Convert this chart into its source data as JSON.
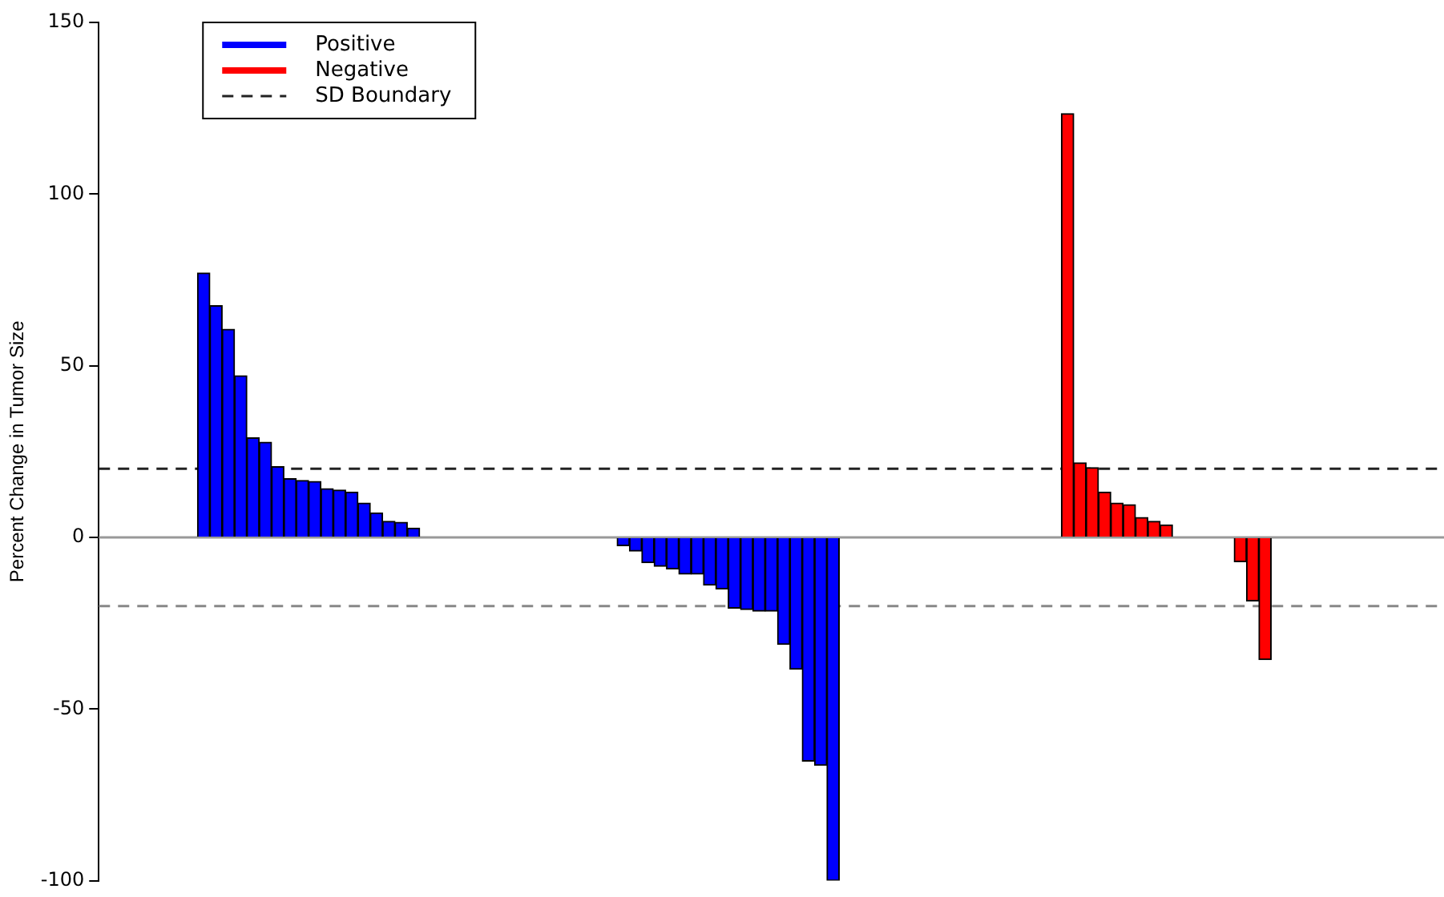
{
  "chart_data": {
    "type": "bar",
    "ylabel": "Percent Change in Tumor Size",
    "categories": [
      null,
      null,
      null,
      null,
      null,
      null,
      null,
      null,
      null,
      null,
      null,
      null,
      null,
      null,
      null,
      null,
      null,
      null,
      null,
      null,
      null,
      null,
      null,
      null,
      null,
      null,
      null,
      null,
      null,
      null,
      null,
      null,
      null,
      null,
      null,
      null,
      null,
      null,
      null,
      null,
      null,
      null,
      null,
      null,
      null,
      null,
      null,
      null,
      null,
      null,
      null,
      null,
      null,
      null,
      null,
      null,
      null,
      null,
      null,
      null,
      null,
      null,
      null,
      null,
      null,
      null,
      null,
      null,
      null,
      null,
      null,
      null,
      null,
      null,
      null,
      null,
      null,
      null,
      null,
      null,
      null,
      null,
      null,
      null,
      null,
      null,
      null,
      null,
      null,
      null,
      null,
      null,
      null,
      null,
      null,
      null,
      null,
      null,
      null,
      null,
      null,
      null,
      null,
      null,
      null,
      null,
      null,
      null,
      null
    ],
    "series": [
      {
        "name": "Positive",
        "color": "#0000ff",
        "values": [
          null,
          null,
          null,
          null,
          null,
          null,
          null,
          null,
          77,
          67.5,
          60.6,
          47.1,
          29,
          27.7,
          20.6,
          17.1,
          16.6,
          16.3,
          14.2,
          13.8,
          13.2,
          10,
          7.1,
          4.7,
          4.4,
          2.7,
          null,
          null,
          null,
          null,
          null,
          null,
          null,
          null,
          null,
          null,
          null,
          null,
          null,
          null,
          null,
          null,
          -2.4,
          -4,
          -7.4,
          -8.4,
          -9.2,
          -10.7,
          -10.7,
          -13.9,
          -15,
          -20.6,
          -21,
          -21.5,
          -21.5,
          -31.2,
          -38.4,
          -65.2,
          -66.4,
          -100,
          null,
          null,
          null,
          null,
          null,
          null,
          null,
          null,
          null,
          null,
          null,
          null,
          null,
          null,
          null,
          null,
          null,
          null,
          null,
          null,
          null,
          null,
          null,
          null,
          null,
          null,
          null,
          null,
          null,
          null,
          null,
          null,
          null,
          null,
          null,
          null,
          null,
          null,
          null,
          null,
          null,
          null,
          null,
          null,
          null,
          null,
          null,
          null,
          null
        ]
      },
      {
        "name": "Negative",
        "color": "#ff0000",
        "values": [
          null,
          null,
          null,
          null,
          null,
          null,
          null,
          null,
          null,
          null,
          null,
          null,
          null,
          null,
          null,
          null,
          null,
          null,
          null,
          null,
          null,
          null,
          null,
          null,
          null,
          null,
          null,
          null,
          null,
          null,
          null,
          null,
          null,
          null,
          null,
          null,
          null,
          null,
          null,
          null,
          null,
          null,
          null,
          null,
          null,
          null,
          null,
          null,
          null,
          null,
          null,
          null,
          null,
          null,
          null,
          null,
          null,
          null,
          null,
          null,
          null,
          null,
          null,
          null,
          null,
          null,
          null,
          null,
          null,
          null,
          null,
          null,
          null,
          null,
          null,
          null,
          null,
          null,
          123.4,
          21.7,
          20.3,
          13.2,
          10,
          9.5,
          5.8,
          4.7,
          3.6,
          null,
          null,
          null,
          null,
          null,
          -7.1,
          -18.5,
          -35.6,
          null,
          null,
          null,
          null,
          null,
          null,
          null,
          null,
          null,
          null,
          null,
          null,
          null,
          null
        ]
      }
    ],
    "ylim": [
      -100,
      150
    ],
    "yticks": [
      -100,
      -50,
      0,
      50,
      100,
      150
    ],
    "ref_lines": [
      {
        "axis": "y",
        "value": 0,
        "color": "#999999",
        "line_style": "solid"
      },
      {
        "axis": "y",
        "value": 20,
        "label": "SD Boundary",
        "color": "#222222",
        "line_style": "dashed"
      },
      {
        "axis": "y",
        "value": -20,
        "color": "#888888",
        "line_style": "dashed"
      }
    ],
    "legend": "top left",
    "grid": false
  }
}
